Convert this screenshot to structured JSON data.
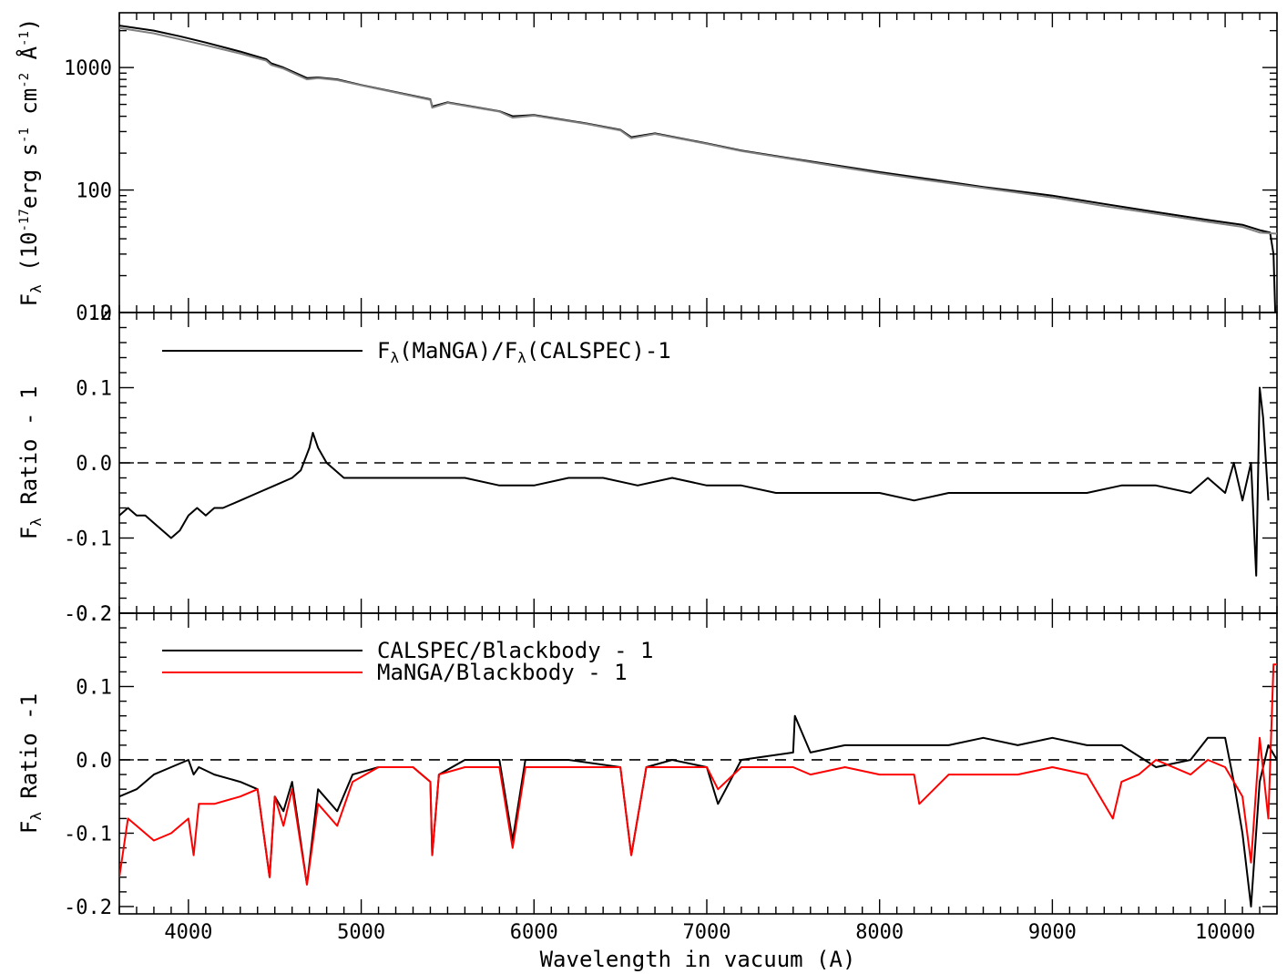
{
  "chart_data": [
    {
      "type": "line",
      "panel": "top",
      "ylabel_main": "F",
      "ylabel_sub": "λ",
      "ylabel_rest": " (10",
      "ylabel_exp1": "-17",
      "ylabel_mid": "erg s",
      "ylabel_exp2": "-1",
      "ylabel_mid2": " cm",
      "ylabel_exp3": "-2",
      "ylabel_mid3": " Å",
      "ylabel_exp4": "-1",
      "ylabel_end": ")",
      "yscale": "log",
      "ylim": [
        10,
        2800
      ],
      "xlim": [
        3600,
        10300
      ],
      "ytick_labels": [
        "10",
        "100",
        "1000"
      ],
      "ytick_values": [
        10,
        100,
        1000
      ],
      "series": [
        {
          "color": "#000000",
          "x": [
            3600,
            3800,
            3950,
            4100,
            4300,
            4450,
            4480,
            4550,
            4686,
            4750,
            4861,
            5000,
            5200,
            5400,
            5411,
            5500,
            5800,
            5876,
            6000,
            6300,
            6500,
            6563,
            6700,
            7000,
            7200,
            7500,
            7800,
            8000,
            8300,
            8600,
            9000,
            9300,
            9600,
            9900,
            10100,
            10200,
            10260,
            10280,
            10290
          ],
          "y": [
            2200,
            2000,
            1800,
            1600,
            1350,
            1170,
            1080,
            1000,
            820,
            830,
            800,
            720,
            630,
            550,
            480,
            520,
            440,
            400,
            410,
            350,
            310,
            270,
            290,
            240,
            210,
            180,
            155,
            140,
            122,
            106,
            90,
            77,
            66,
            57,
            52,
            47,
            45,
            30,
            10
          ]
        },
        {
          "color": "#808080",
          "x": [
            3600,
            3800,
            3950,
            4100,
            4300,
            4450,
            4480,
            4550,
            4686,
            4750,
            4861,
            5000,
            5200,
            5400,
            5411,
            5500,
            5800,
            5876,
            6000,
            6300,
            6500,
            6563,
            6700,
            7000,
            7200,
            7500,
            7800,
            8000,
            8300,
            8600,
            9000,
            9300,
            9600,
            9900,
            10100,
            10200,
            10300
          ],
          "y": [
            2100,
            1900,
            1700,
            1520,
            1300,
            1140,
            1050,
            980,
            800,
            820,
            790,
            715,
            625,
            545,
            470,
            515,
            437,
            390,
            405,
            347,
            307,
            265,
            287,
            238,
            208,
            178,
            152,
            137,
            119,
            104,
            87,
            74,
            64,
            55,
            50,
            45,
            44
          ]
        }
      ]
    },
    {
      "type": "line",
      "panel": "middle",
      "ylabel": "F",
      "ylabel_sub": "λ",
      "ylabel_rest": " Ratio - 1",
      "ylim": [
        -0.2,
        0.2
      ],
      "xlim": [
        3600,
        10300
      ],
      "ytick_labels": [
        "-0.2",
        "-0.1",
        "0.0",
        "0.1",
        "0.2"
      ],
      "ytick_values": [
        -0.2,
        -0.1,
        0.0,
        0.1,
        0.2
      ],
      "zero_line": true,
      "legend_pre": "F",
      "legend_sub1": "λ",
      "legend_mid": "(MaNGA)/F",
      "legend_sub2": "λ",
      "legend_end": "(CALSPEC)-1",
      "series": [
        {
          "color": "#000000",
          "x": [
            3600,
            3650,
            3700,
            3750,
            3800,
            3850,
            3900,
            3950,
            4000,
            4050,
            4100,
            4150,
            4200,
            4300,
            4400,
            4500,
            4600,
            4650,
            4700,
            4720,
            4750,
            4800,
            4900,
            5000,
            5200,
            5400,
            5600,
            5800,
            6000,
            6200,
            6400,
            6600,
            6800,
            7000,
            7200,
            7400,
            7600,
            7800,
            8000,
            8200,
            8400,
            8600,
            8800,
            9000,
            9200,
            9400,
            9600,
            9800,
            9900,
            10000,
            10050,
            10100,
            10150,
            10180,
            10200,
            10220,
            10250
          ],
          "y": [
            -0.07,
            -0.06,
            -0.07,
            -0.07,
            -0.08,
            -0.09,
            -0.1,
            -0.09,
            -0.07,
            -0.06,
            -0.07,
            -0.06,
            -0.06,
            -0.05,
            -0.04,
            -0.03,
            -0.02,
            -0.01,
            0.02,
            0.04,
            0.02,
            0.0,
            -0.02,
            -0.02,
            -0.02,
            -0.02,
            -0.02,
            -0.03,
            -0.03,
            -0.02,
            -0.02,
            -0.03,
            -0.02,
            -0.03,
            -0.03,
            -0.04,
            -0.04,
            -0.04,
            -0.04,
            -0.05,
            -0.04,
            -0.04,
            -0.04,
            -0.04,
            -0.04,
            -0.03,
            -0.03,
            -0.04,
            -0.02,
            -0.04,
            0.0,
            -0.05,
            0.0,
            -0.15,
            0.1,
            0.06,
            -0.05
          ]
        }
      ]
    },
    {
      "type": "line",
      "panel": "bottom",
      "ylabel": "F",
      "ylabel_sub": "λ",
      "ylabel_rest": " Ratio -1",
      "ylim": [
        -0.21,
        0.2
      ],
      "xlim": [
        3600,
        10300
      ],
      "xlabel": "Wavelength in vacuum (A)",
      "xtick_labels": [
        "4000",
        "5000",
        "6000",
        "7000",
        "8000",
        "9000",
        "10000"
      ],
      "xtick_values": [
        4000,
        5000,
        6000,
        7000,
        8000,
        9000,
        10000
      ],
      "ytick_labels": [
        "-0.2",
        "-0.1",
        "0.0",
        "0.1",
        "0.2"
      ],
      "ytick_values": [
        -0.2,
        -0.1,
        0.0,
        0.1,
        0.2
      ],
      "zero_line": true,
      "series": [
        {
          "name": "CALSPEC/Blackbody - 1",
          "color": "#000000",
          "x": [
            3600,
            3700,
            3800,
            3900,
            4000,
            4030,
            4060,
            4150,
            4300,
            4400,
            4470,
            4500,
            4550,
            4600,
            4686,
            4750,
            4861,
            4950,
            5100,
            5300,
            5400,
            5411,
            5450,
            5600,
            5800,
            5876,
            5950,
            6200,
            6500,
            6563,
            6650,
            6800,
            7000,
            7065,
            7200,
            7500,
            7510,
            7600,
            7800,
            8000,
            8200,
            8400,
            8600,
            8800,
            9000,
            9200,
            9400,
            9600,
            9800,
            9900,
            10000,
            10050,
            10100,
            10150,
            10200,
            10250,
            10300
          ],
          "y": [
            -0.05,
            -0.04,
            -0.02,
            -0.01,
            0.0,
            -0.02,
            -0.01,
            -0.02,
            -0.03,
            -0.04,
            -0.16,
            -0.05,
            -0.07,
            -0.03,
            -0.17,
            -0.04,
            -0.07,
            -0.02,
            -0.01,
            -0.01,
            -0.03,
            -0.13,
            -0.02,
            0.0,
            0.0,
            -0.11,
            0.0,
            0.0,
            -0.01,
            -0.13,
            -0.01,
            0.0,
            -0.01,
            -0.06,
            0.0,
            0.01,
            0.06,
            0.01,
            0.02,
            0.02,
            0.02,
            0.02,
            0.03,
            0.02,
            0.03,
            0.02,
            0.02,
            -0.01,
            0.0,
            0.03,
            0.03,
            -0.03,
            -0.1,
            -0.2,
            -0.03,
            0.02,
            0.0
          ]
        },
        {
          "name": "MaNGA/Blackbody - 1",
          "color": "#ff0000",
          "x": [
            3600,
            3650,
            3700,
            3800,
            3900,
            4000,
            4030,
            4060,
            4150,
            4300,
            4400,
            4470,
            4500,
            4550,
            4600,
            4686,
            4750,
            4861,
            4950,
            5100,
            5300,
            5400,
            5411,
            5450,
            5600,
            5800,
            5876,
            5950,
            6200,
            6500,
            6563,
            6650,
            6800,
            7000,
            7065,
            7200,
            7500,
            7600,
            7800,
            8000,
            8200,
            8230,
            8400,
            8600,
            8800,
            9000,
            9200,
            9350,
            9400,
            9500,
            9600,
            9800,
            9900,
            10000,
            10100,
            10150,
            10200,
            10250,
            10280,
            10300
          ],
          "y": [
            -0.16,
            -0.08,
            -0.09,
            -0.11,
            -0.1,
            -0.08,
            -0.13,
            -0.06,
            -0.06,
            -0.05,
            -0.04,
            -0.16,
            -0.05,
            -0.09,
            -0.04,
            -0.17,
            -0.06,
            -0.09,
            -0.03,
            -0.01,
            -0.01,
            -0.03,
            -0.13,
            -0.02,
            -0.01,
            -0.01,
            -0.12,
            -0.01,
            -0.01,
            -0.01,
            -0.13,
            -0.01,
            -0.01,
            -0.01,
            -0.04,
            -0.01,
            -0.01,
            -0.02,
            -0.01,
            -0.02,
            -0.02,
            -0.06,
            -0.02,
            -0.02,
            -0.02,
            -0.01,
            -0.02,
            -0.08,
            -0.03,
            -0.02,
            0.0,
            -0.02,
            0.0,
            -0.01,
            -0.05,
            -0.14,
            0.03,
            -0.08,
            0.13,
            0.13
          ]
        }
      ]
    }
  ]
}
